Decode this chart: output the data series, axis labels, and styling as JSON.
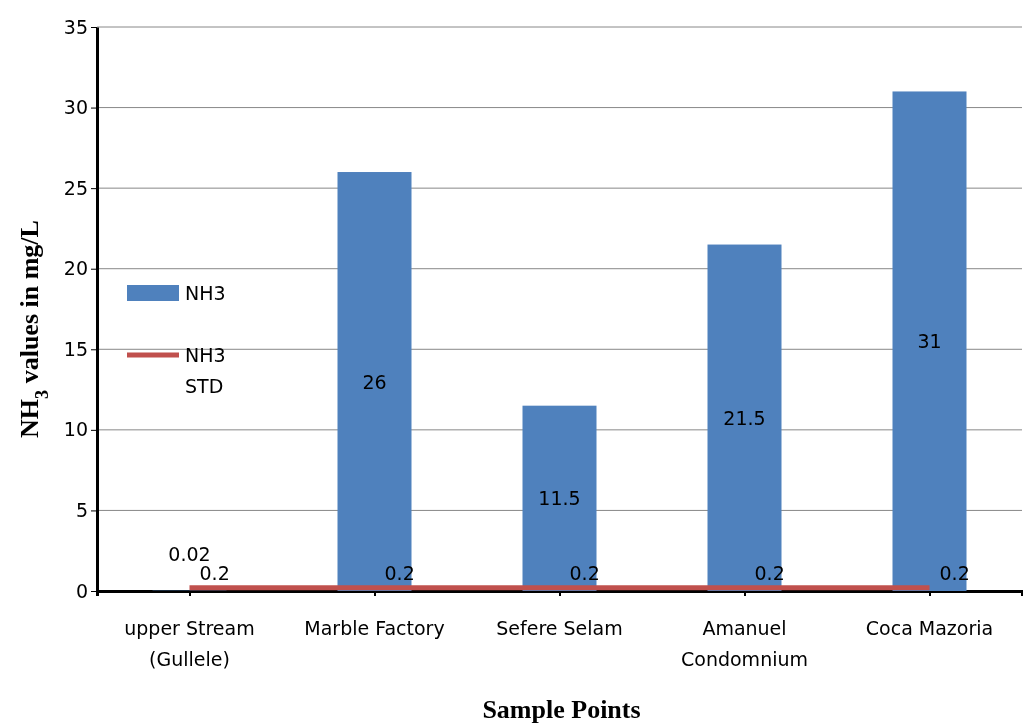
{
  "chart_data": {
    "type": "bar",
    "xlabel": "Sample Points",
    "ylabel": "NH$_{3}$ values in mg/L",
    "categories": [
      "upper Stream (Gullele)",
      "Marble Factory",
      "Sefere Selam",
      "Amanuel Condomnium",
      "Coca Mazoria"
    ],
    "series": [
      {
        "name": "NH3",
        "color": "#4f81bd",
        "values": [
          0.02,
          26,
          11.5,
          21.5,
          31
        ]
      },
      {
        "name": "NH3 STD",
        "type": "line",
        "color": "#c0504d",
        "values": [
          0.2,
          0.2,
          0.2,
          0.2,
          0.2
        ]
      }
    ],
    "data_labels": true,
    "ylim": [
      0,
      35
    ],
    "yticks": [
      0,
      5,
      10,
      15,
      20,
      25,
      30,
      35
    ],
    "grid": "y",
    "legend": "left",
    "marker": "none"
  }
}
